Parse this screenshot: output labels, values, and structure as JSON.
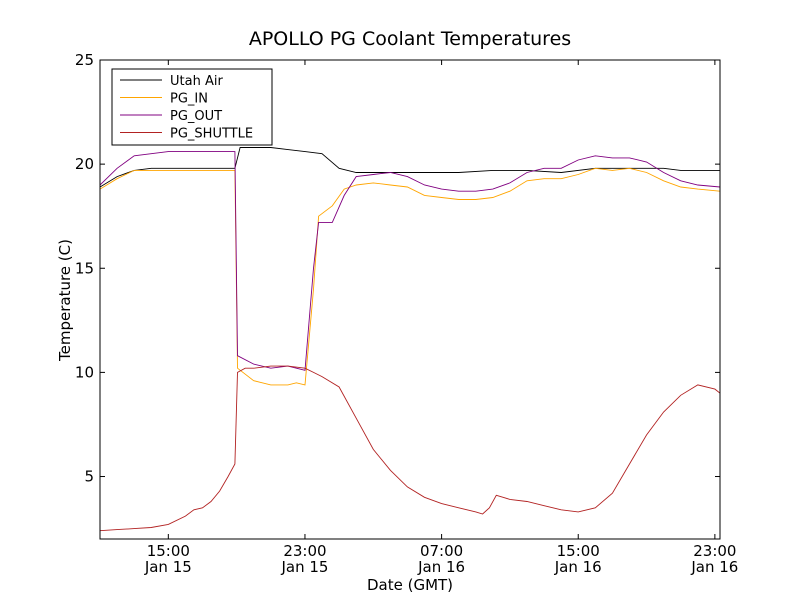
{
  "chart_data": {
    "type": "line",
    "title": "APOLLO PG Coolant Temperatures",
    "xlabel": "Date (GMT)",
    "ylabel": "Temperature (C)",
    "xlim_hours": [
      11.0,
      47.3
    ],
    "ylim": [
      2,
      25
    ],
    "y_ticks": [
      5,
      10,
      15,
      20,
      25
    ],
    "x_ticks": [
      {
        "hours": 15,
        "label1": "15:00",
        "label2": "Jan 15"
      },
      {
        "hours": 23,
        "label1": "23:00",
        "label2": "Jan 15"
      },
      {
        "hours": 31,
        "label1": "07:00",
        "label2": "Jan 16"
      },
      {
        "hours": 39,
        "label1": "15:00",
        "label2": "Jan 16"
      },
      {
        "hours": 47,
        "label1": "23:00",
        "label2": "Jan 16"
      }
    ],
    "legend_position": "top-left",
    "series": [
      {
        "name": "Utah Air",
        "color": "#000000",
        "points": [
          [
            11.0,
            18.9
          ],
          [
            12.0,
            19.4
          ],
          [
            13.0,
            19.7
          ],
          [
            14.0,
            19.8
          ],
          [
            15.0,
            19.8
          ],
          [
            16.0,
            19.8
          ],
          [
            17.0,
            19.8
          ],
          [
            18.0,
            19.8
          ],
          [
            18.9,
            19.8
          ],
          [
            19.2,
            20.8
          ],
          [
            20.0,
            20.8
          ],
          [
            21.0,
            20.8
          ],
          [
            22.0,
            20.7
          ],
          [
            23.0,
            20.6
          ],
          [
            24.0,
            20.5
          ],
          [
            25.0,
            19.8
          ],
          [
            26.0,
            19.6
          ],
          [
            28.0,
            19.6
          ],
          [
            30.0,
            19.6
          ],
          [
            32.0,
            19.6
          ],
          [
            34.0,
            19.7
          ],
          [
            36.0,
            19.7
          ],
          [
            38.0,
            19.6
          ],
          [
            40.0,
            19.8
          ],
          [
            42.0,
            19.8
          ],
          [
            44.0,
            19.8
          ],
          [
            45.0,
            19.7
          ],
          [
            47.3,
            19.7
          ]
        ]
      },
      {
        "name": "PG_IN",
        "color": "#FFA500",
        "points": [
          [
            11.0,
            18.8
          ],
          [
            12.0,
            19.3
          ],
          [
            13.0,
            19.7
          ],
          [
            14.0,
            19.7
          ],
          [
            15.0,
            19.7
          ],
          [
            16.0,
            19.7
          ],
          [
            17.0,
            19.7
          ],
          [
            18.0,
            19.7
          ],
          [
            18.9,
            19.7
          ],
          [
            19.05,
            10.2
          ],
          [
            20.0,
            9.6
          ],
          [
            21.0,
            9.4
          ],
          [
            22.0,
            9.4
          ],
          [
            22.5,
            9.5
          ],
          [
            23.0,
            9.4
          ],
          [
            23.5,
            14.0
          ],
          [
            23.8,
            17.5
          ],
          [
            24.6,
            18.0
          ],
          [
            25.3,
            18.8
          ],
          [
            26.0,
            19.0
          ],
          [
            27.0,
            19.1
          ],
          [
            28.0,
            19.0
          ],
          [
            29.0,
            18.9
          ],
          [
            30.0,
            18.5
          ],
          [
            31.0,
            18.4
          ],
          [
            32.0,
            18.3
          ],
          [
            33.0,
            18.3
          ],
          [
            34.0,
            18.4
          ],
          [
            35.0,
            18.7
          ],
          [
            36.0,
            19.2
          ],
          [
            37.0,
            19.3
          ],
          [
            38.0,
            19.3
          ],
          [
            39.0,
            19.5
          ],
          [
            40.0,
            19.8
          ],
          [
            41.0,
            19.7
          ],
          [
            42.0,
            19.8
          ],
          [
            43.0,
            19.6
          ],
          [
            44.0,
            19.2
          ],
          [
            45.0,
            18.9
          ],
          [
            46.0,
            18.8
          ],
          [
            47.3,
            18.7
          ]
        ]
      },
      {
        "name": "PG_OUT",
        "color": "#800080",
        "points": [
          [
            11.0,
            19.0
          ],
          [
            12.0,
            19.8
          ],
          [
            13.0,
            20.4
          ],
          [
            14.0,
            20.5
          ],
          [
            15.0,
            20.6
          ],
          [
            16.0,
            20.6
          ],
          [
            17.0,
            20.6
          ],
          [
            18.0,
            20.6
          ],
          [
            18.9,
            20.6
          ],
          [
            19.05,
            10.8
          ],
          [
            20.0,
            10.4
          ],
          [
            21.0,
            10.2
          ],
          [
            22.0,
            10.3
          ],
          [
            22.5,
            10.2
          ],
          [
            23.0,
            10.1
          ],
          [
            23.5,
            15.0
          ],
          [
            23.8,
            17.2
          ],
          [
            24.6,
            17.2
          ],
          [
            25.3,
            18.5
          ],
          [
            26.0,
            19.4
          ],
          [
            27.0,
            19.5
          ],
          [
            28.0,
            19.6
          ],
          [
            29.0,
            19.4
          ],
          [
            30.0,
            19.0
          ],
          [
            31.0,
            18.8
          ],
          [
            32.0,
            18.7
          ],
          [
            33.0,
            18.7
          ],
          [
            34.0,
            18.8
          ],
          [
            35.0,
            19.1
          ],
          [
            36.0,
            19.6
          ],
          [
            37.0,
            19.8
          ],
          [
            38.0,
            19.8
          ],
          [
            39.0,
            20.2
          ],
          [
            40.0,
            20.4
          ],
          [
            41.0,
            20.3
          ],
          [
            42.0,
            20.3
          ],
          [
            43.0,
            20.1
          ],
          [
            44.0,
            19.6
          ],
          [
            45.0,
            19.2
          ],
          [
            46.0,
            19.0
          ],
          [
            47.3,
            18.9
          ]
        ]
      },
      {
        "name": "PG_SHUTTLE",
        "color": "#B22222",
        "points": [
          [
            11.0,
            2.4
          ],
          [
            12.0,
            2.45
          ],
          [
            13.0,
            2.5
          ],
          [
            14.0,
            2.55
          ],
          [
            15.0,
            2.7
          ],
          [
            16.0,
            3.1
          ],
          [
            16.5,
            3.4
          ],
          [
            17.0,
            3.5
          ],
          [
            17.5,
            3.8
          ],
          [
            18.0,
            4.3
          ],
          [
            18.5,
            5.0
          ],
          [
            18.9,
            5.6
          ],
          [
            19.05,
            10.0
          ],
          [
            19.5,
            10.2
          ],
          [
            20.0,
            10.2
          ],
          [
            21.0,
            10.3
          ],
          [
            22.0,
            10.3
          ],
          [
            23.0,
            10.2
          ],
          [
            23.5,
            10.0
          ],
          [
            24.0,
            9.8
          ],
          [
            25.0,
            9.3
          ],
          [
            26.0,
            7.8
          ],
          [
            27.0,
            6.3
          ],
          [
            28.0,
            5.3
          ],
          [
            29.0,
            4.5
          ],
          [
            30.0,
            4.0
          ],
          [
            31.0,
            3.7
          ],
          [
            32.0,
            3.5
          ],
          [
            33.0,
            3.3
          ],
          [
            33.4,
            3.2
          ],
          [
            33.8,
            3.5
          ],
          [
            34.2,
            4.1
          ],
          [
            34.6,
            4.0
          ],
          [
            35.0,
            3.9
          ],
          [
            36.0,
            3.8
          ],
          [
            37.0,
            3.6
          ],
          [
            38.0,
            3.4
          ],
          [
            39.0,
            3.3
          ],
          [
            40.0,
            3.5
          ],
          [
            41.0,
            4.2
          ],
          [
            42.0,
            5.6
          ],
          [
            43.0,
            7.0
          ],
          [
            44.0,
            8.1
          ],
          [
            45.0,
            8.9
          ],
          [
            46.0,
            9.4
          ],
          [
            47.0,
            9.2
          ],
          [
            47.3,
            9.0
          ]
        ]
      }
    ]
  }
}
